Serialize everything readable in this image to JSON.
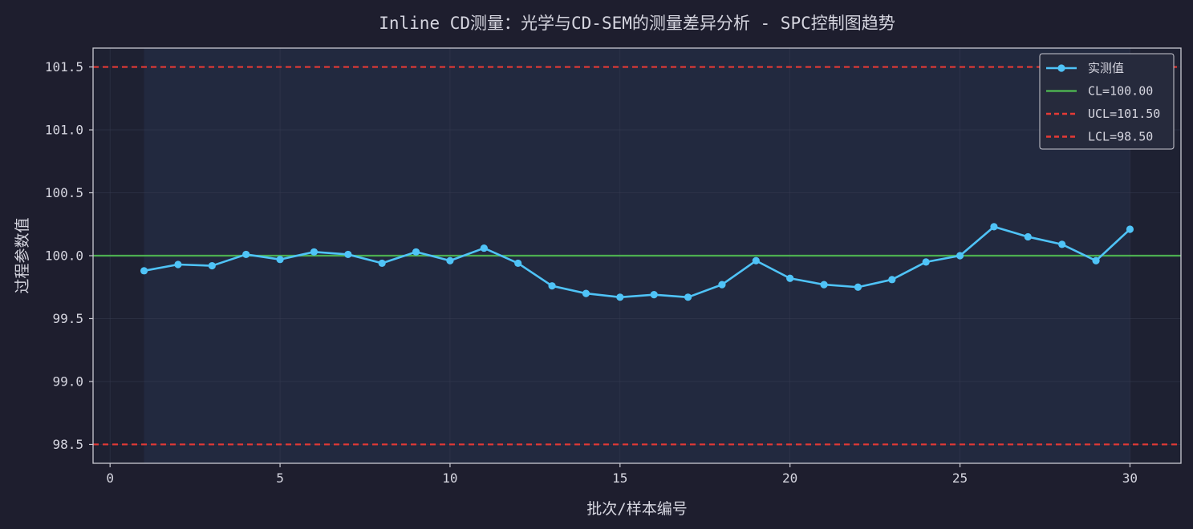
{
  "chart_data": {
    "type": "line",
    "title": "Inline CD测量：光学与CD-SEM的测量差异分析 - SPC控制图趋势",
    "xlabel": "批次/样本编号",
    "ylabel": "过程参数值",
    "xlim": [
      -0.5,
      31.5
    ],
    "ylim": [
      98.35,
      101.65
    ],
    "xticks": [
      0,
      5,
      10,
      15,
      20,
      25,
      30
    ],
    "yticks": [
      98.5,
      99.0,
      99.5,
      100.0,
      100.5,
      101.0,
      101.5
    ],
    "xtick_labels": [
      "0",
      "5",
      "10",
      "15",
      "20",
      "25",
      "30"
    ],
    "ytick_labels": [
      "98.5",
      "99.0",
      "99.5",
      "100.0",
      "100.5",
      "101.0",
      "101.5"
    ],
    "grid": true,
    "legend_position": "top-right",
    "highlight_span": [
      1,
      30
    ],
    "series": [
      {
        "name": "实测值",
        "color": "#4fc3f7",
        "x": [
          1,
          2,
          3,
          4,
          5,
          6,
          7,
          8,
          9,
          10,
          11,
          12,
          13,
          14,
          15,
          16,
          17,
          18,
          19,
          20,
          21,
          22,
          23,
          24,
          25,
          26,
          27,
          28,
          29,
          30
        ],
        "y": [
          99.88,
          99.93,
          99.92,
          100.01,
          99.97,
          100.03,
          100.01,
          99.94,
          100.03,
          99.96,
          100.06,
          99.94,
          99.76,
          99.7,
          99.67,
          99.69,
          99.67,
          99.77,
          99.96,
          99.82,
          99.77,
          99.75,
          99.81,
          99.95,
          100.0,
          100.23,
          100.15,
          100.09,
          99.96,
          100.21
        ]
      }
    ],
    "reference_lines": [
      {
        "name": "CL=100.00",
        "value": 100.0,
        "color": "#4caf50",
        "style": "solid"
      },
      {
        "name": "UCL=101.50",
        "value": 101.5,
        "color": "#e53935",
        "style": "dashed"
      },
      {
        "name": "LCL=98.50",
        "value": 98.5,
        "color": "#e53935",
        "style": "dashed"
      }
    ]
  }
}
